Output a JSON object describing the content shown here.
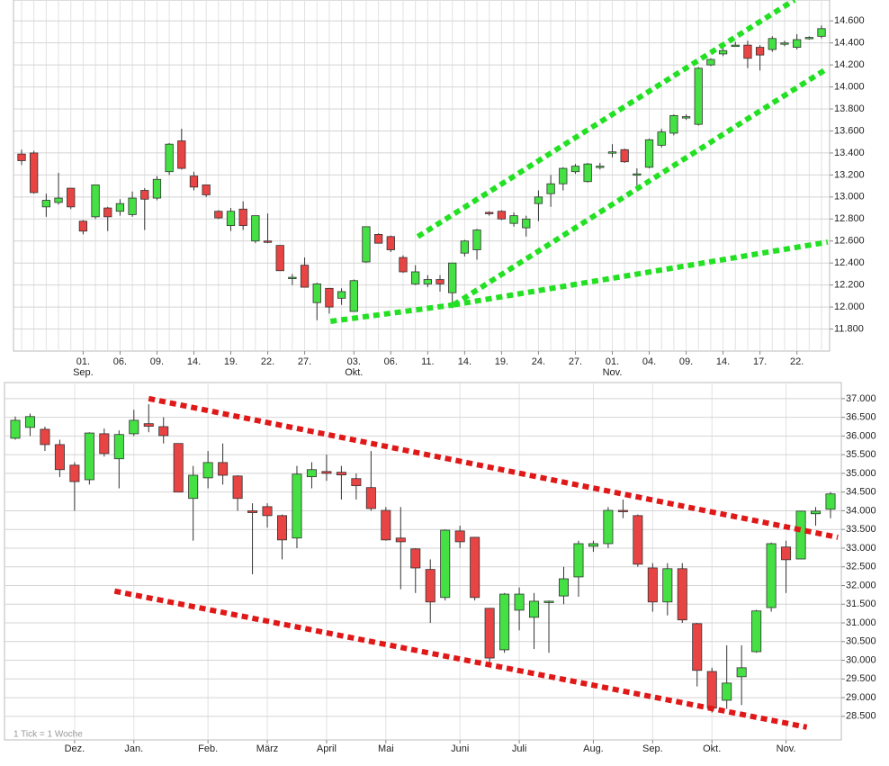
{
  "chart_data": [
    {
      "type": "candlestick",
      "categories": [
        null,
        null,
        null,
        null,
        null,
        "01.",
        null,
        null,
        "06.",
        null,
        null,
        "09.",
        null,
        null,
        "14.",
        null,
        null,
        "19.",
        null,
        null,
        "22.",
        null,
        null,
        "27.",
        null,
        null,
        null,
        "03.",
        null,
        null,
        "06.",
        null,
        null,
        "11.",
        null,
        null,
        "14.",
        null,
        null,
        "19.",
        null,
        null,
        "24.",
        null,
        null,
        "27.",
        null,
        null,
        "01.",
        null,
        null,
        "04.",
        null,
        null,
        "09.",
        null,
        null,
        "14.",
        null,
        null,
        "17.",
        null,
        null,
        "22.",
        null,
        null
      ],
      "category_months": [
        null,
        null,
        null,
        null,
        null,
        "Sep.",
        null,
        null,
        null,
        null,
        null,
        null,
        null,
        null,
        null,
        null,
        null,
        null,
        null,
        null,
        null,
        null,
        null,
        null,
        null,
        null,
        null,
        "Okt.",
        null,
        null,
        null,
        null,
        null,
        null,
        null,
        null,
        null,
        null,
        null,
        null,
        null,
        null,
        null,
        null,
        null,
        null,
        null,
        null,
        "Nov.",
        null,
        null,
        null,
        null,
        null,
        null,
        null,
        null,
        null,
        null,
        null,
        null,
        null,
        null,
        null,
        null,
        null
      ],
      "open": [
        13390,
        13400,
        12910,
        12950,
        13080,
        12780,
        12820,
        12900,
        12870,
        12840,
        13060,
        12990,
        13230,
        13510,
        13190,
        13110,
        12870,
        12740,
        12890,
        12600,
        12600,
        12560,
        12270,
        12380,
        12040,
        12170,
        12080,
        11960,
        12410,
        12660,
        12640,
        12450,
        12210,
        12210,
        12250,
        12130,
        12490,
        12520,
        12860,
        12870,
        12760,
        12720,
        12940,
        13030,
        13120,
        13230,
        13140,
        13270,
        13410,
        13430,
        13210,
        13270,
        13470,
        13580,
        13720,
        13660,
        14200,
        14300,
        14380,
        14380,
        14360,
        14340,
        14400,
        14360,
        14440,
        14460
      ],
      "high": [
        13430,
        13420,
        13030,
        13220,
        13080,
        12790,
        13110,
        12910,
        12980,
        13050,
        13080,
        13190,
        13490,
        13620,
        13230,
        13110,
        12880,
        12900,
        12960,
        12830,
        12850,
        12560,
        12300,
        12450,
        12220,
        12170,
        12170,
        12250,
        12730,
        12670,
        12650,
        12470,
        12380,
        12290,
        12290,
        12400,
        12610,
        12710,
        12870,
        12880,
        12860,
        12830,
        13060,
        13200,
        13270,
        13300,
        13310,
        13310,
        13480,
        13440,
        13260,
        13530,
        13620,
        13750,
        13750,
        14180,
        14260,
        14360,
        14410,
        14420,
        14380,
        14460,
        14420,
        14480,
        14460,
        14560
      ],
      "low": [
        13290,
        13030,
        12820,
        12930,
        12890,
        12660,
        12800,
        12690,
        12830,
        12820,
        12700,
        12970,
        13200,
        13250,
        13060,
        13000,
        12800,
        12690,
        12700,
        12580,
        12580,
        12330,
        12200,
        12180,
        11880,
        11940,
        12020,
        11960,
        12400,
        12580,
        12500,
        12310,
        12200,
        12180,
        12140,
        11990,
        12460,
        12430,
        12830,
        12790,
        12730,
        12640,
        12780,
        12910,
        13060,
        13210,
        13130,
        13250,
        13360,
        13310,
        13100,
        13260,
        13450,
        13560,
        13700,
        13650,
        14190,
        14280,
        14370,
        14170,
        14150,
        14320,
        14370,
        14340,
        14430,
        14440
      ],
      "close": [
        13330,
        13040,
        12970,
        12990,
        12910,
        12690,
        13110,
        12820,
        12940,
        12990,
        12980,
        13160,
        13480,
        13260,
        13090,
        13020,
        12810,
        12870,
        12740,
        12830,
        12590,
        12330,
        12270,
        12180,
        12210,
        12000,
        12140,
        12240,
        12730,
        12580,
        12520,
        12320,
        12320,
        12250,
        12210,
        12400,
        12600,
        12700,
        12850,
        12800,
        12830,
        12800,
        13000,
        13120,
        13260,
        13280,
        13300,
        13280,
        13410,
        13320,
        13210,
        13520,
        13590,
        13740,
        13730,
        14170,
        14250,
        14330,
        14380,
        14260,
        14290,
        14440,
        14400,
        14430,
        14450,
        14530
      ],
      "up_color": "#44e044",
      "down_color": "#e84444",
      "ylim": [
        11600,
        14790
      ],
      "yticks": [
        {
          "value": 11800,
          "label": "11.800"
        },
        {
          "value": 12000,
          "label": "12.000"
        },
        {
          "value": 12200,
          "label": "12.200"
        },
        {
          "value": 12400,
          "label": "12.400"
        },
        {
          "value": 12600,
          "label": "12.600"
        },
        {
          "value": 12800,
          "label": "12.800"
        },
        {
          "value": 13000,
          "label": "13.000"
        },
        {
          "value": 13200,
          "label": "13.200"
        },
        {
          "value": 13400,
          "label": "13.400"
        },
        {
          "value": 13600,
          "label": "13.600"
        },
        {
          "value": 13800,
          "label": "13.800"
        },
        {
          "value": 14000,
          "label": "14.000"
        },
        {
          "value": 14200,
          "label": "14.200"
        },
        {
          "value": 14400,
          "label": "14.400"
        },
        {
          "value": 14600,
          "label": "14.600"
        }
      ],
      "grid": true,
      "x_grid": "every",
      "trendline_color": "#22e022",
      "trendlines": [
        {
          "x": [
            25.1,
            35.1
          ],
          "y": [
            11870,
            12020
          ]
        },
        {
          "x": [
            35.1,
            65.5
          ],
          "y": [
            12020,
            12590
          ]
        },
        {
          "x": [
            35.1,
            65.5
          ],
          "y": [
            12020,
            14170
          ]
        },
        {
          "x": [
            32.2,
            62.8
          ],
          "y": [
            12640,
            14790
          ]
        }
      ]
    },
    {
      "type": "candlestick",
      "categories": [
        null,
        null,
        null,
        null,
        "Dez.",
        null,
        null,
        null,
        "Jan.",
        null,
        null,
        null,
        null,
        "Feb.",
        null,
        null,
        null,
        "März",
        null,
        null,
        null,
        "April",
        null,
        null,
        null,
        "Mai",
        null,
        null,
        null,
        null,
        "Juni",
        null,
        null,
        null,
        "Juli",
        null,
        null,
        null,
        null,
        "Aug.",
        null,
        null,
        null,
        "Sep.",
        null,
        null,
        null,
        "Okt.",
        null,
        null,
        null,
        null,
        "Nov.",
        null,
        null,
        null
      ],
      "open": [
        35940,
        36230,
        36180,
        35770,
        35220,
        34830,
        36060,
        35390,
        36060,
        36330,
        36250,
        35800,
        34330,
        34880,
        35290,
        34930,
        34000,
        34110,
        33870,
        33270,
        34910,
        35050,
        35030,
        34860,
        34620,
        34010,
        33270,
        32980,
        32430,
        31680,
        33460,
        33290,
        31390,
        30280,
        31340,
        31150,
        31560,
        31720,
        32230,
        33050,
        33120,
        34010,
        33870,
        32470,
        31560,
        32450,
        30980,
        29700,
        28930,
        29560,
        30230,
        31410,
        33030,
        32710,
        33920,
        34040
      ],
      "high": [
        36520,
        36600,
        36250,
        35900,
        35300,
        36100,
        36200,
        36150,
        36700,
        36850,
        36500,
        35800,
        35200,
        35600,
        35800,
        34950,
        34200,
        34200,
        33900,
        35200,
        35300,
        35500,
        35200,
        35000,
        35600,
        34100,
        34100,
        33000,
        32700,
        33500,
        33600,
        33300,
        31400,
        31800,
        31950,
        31800,
        31600,
        32500,
        33200,
        33200,
        34100,
        34300,
        33900,
        32600,
        32600,
        32600,
        31000,
        29800,
        30400,
        30400,
        31350,
        33150,
        33200,
        34000,
        34100,
        34500
      ],
      "low": [
        35900,
        36000,
        35600,
        34900,
        34000,
        34700,
        35450,
        34600,
        36000,
        36100,
        35800,
        34500,
        33200,
        34600,
        34700,
        34000,
        32300,
        33550,
        32700,
        33000,
        34600,
        34800,
        34300,
        34300,
        34000,
        33200,
        31900,
        31800,
        31000,
        31600,
        33000,
        31600,
        29900,
        30200,
        30800,
        30300,
        30200,
        31500,
        31700,
        32900,
        33000,
        33800,
        32500,
        31300,
        31200,
        31000,
        29300,
        28600,
        28700,
        28800,
        30200,
        31300,
        31800,
        32700,
        33600,
        33800
      ],
      "close": [
        36420,
        36520,
        35770,
        35100,
        34780,
        36080,
        35530,
        36040,
        36420,
        36260,
        36010,
        34500,
        34950,
        35290,
        34950,
        34330,
        33950,
        33870,
        33220,
        34980,
        35100,
        35000,
        34960,
        34670,
        34060,
        33220,
        33170,
        32470,
        31560,
        33480,
        33170,
        31680,
        30060,
        31770,
        31770,
        31580,
        31580,
        32180,
        33120,
        33120,
        34010,
        34000,
        32570,
        31560,
        32450,
        31080,
        29730,
        28720,
        29390,
        29800,
        31320,
        33120,
        32690,
        33990,
        33990,
        34450
      ],
      "up_color": "#44e044",
      "down_color": "#e84444",
      "ylim": [
        27870,
        37430
      ],
      "yticks": [
        {
          "value": 28500,
          "label": "28.500"
        },
        {
          "value": 29000,
          "label": "29.000"
        },
        {
          "value": 29500,
          "label": "29.500"
        },
        {
          "value": 30000,
          "label": "30.000"
        },
        {
          "value": 30500,
          "label": "30.500"
        },
        {
          "value": 31000,
          "label": "31.000"
        },
        {
          "value": 31500,
          "label": "31.500"
        },
        {
          "value": 32000,
          "label": "32.000"
        },
        {
          "value": 32500,
          "label": "32.500"
        },
        {
          "value": 33000,
          "label": "33.000"
        },
        {
          "value": 33500,
          "label": "33.500"
        },
        {
          "value": 34000,
          "label": "34.000"
        },
        {
          "value": 34500,
          "label": "34.500"
        },
        {
          "value": 35000,
          "label": "35.000"
        },
        {
          "value": 35500,
          "label": "35.500"
        },
        {
          "value": 36000,
          "label": "36.000"
        },
        {
          "value": 36500,
          "label": "36.500"
        },
        {
          "value": 37000,
          "label": "37.000"
        }
      ],
      "grid": true,
      "x_grid": "labeled",
      "annotation": "1 Tick = 1 Woche",
      "trendline_color": "#e01818",
      "trendlines": [
        {
          "x": [
            9.0,
            55.5
          ],
          "y": [
            37000,
            33290
          ]
        },
        {
          "x": [
            6.7,
            53.4
          ],
          "y": [
            31850,
            28210
          ]
        }
      ]
    }
  ]
}
